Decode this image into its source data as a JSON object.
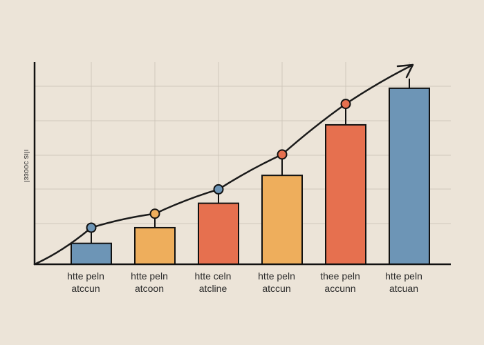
{
  "chart_data": {
    "type": "bar",
    "title": "",
    "xlabel": "",
    "ylabel": "ılıs ɔooɛɛl",
    "categories": [
      [
        "htte peln",
        "atccun"
      ],
      [
        "htte peln",
        "atcoon"
      ],
      [
        "htte celn",
        "atcline"
      ],
      [
        "htte peln",
        "atccun"
      ],
      [
        "thee peln",
        "accunn"
      ],
      [
        "htte peln",
        "atcuan"
      ]
    ],
    "values": [
      6,
      10.5,
      17.5,
      25.5,
      40,
      50.5
    ],
    "ylim": [
      0,
      58
    ],
    "grid": true,
    "bar_colors": [
      "#6d95b6",
      "#eeae5c",
      "#e6704f",
      "#eeae5c",
      "#e6704f",
      "#6d95b6"
    ],
    "trend_line": {
      "points": [
        10.5,
        14.5,
        21.5,
        31.5,
        46
      ],
      "marker_colors": [
        "#6d95b6",
        "#eeae5c",
        "#6d95b6",
        "#e6704f",
        "#e6704f"
      ],
      "end_arrow": true
    },
    "colors": {
      "background": "#ece4d8",
      "grid": "#cfc7bb",
      "axis": "#111111",
      "line": "#1a1a1a"
    }
  }
}
